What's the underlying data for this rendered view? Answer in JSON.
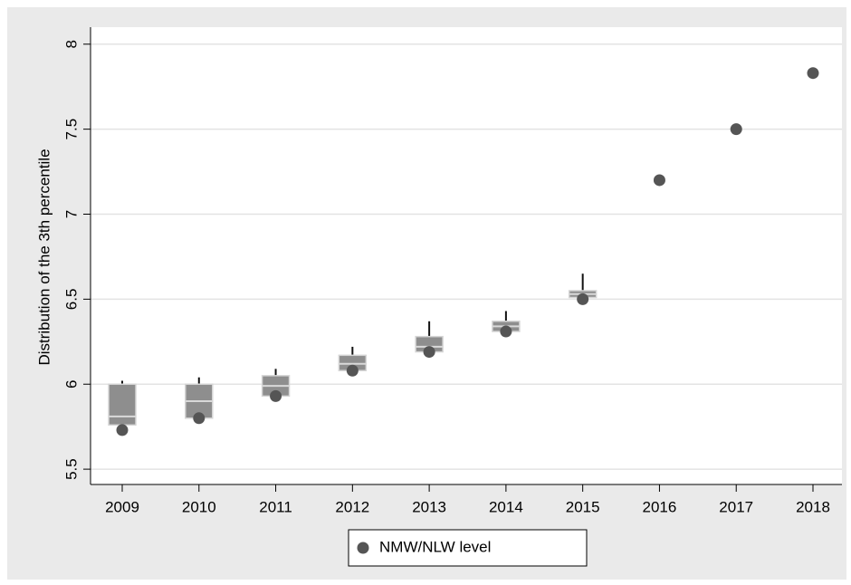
{
  "chart_data": {
    "type": "box",
    "ylabel": "Distribution of the 3th percentile",
    "categories": [
      "2009",
      "2010",
      "2011",
      "2012",
      "2013",
      "2014",
      "2015",
      "2016",
      "2017",
      "2018"
    ],
    "ylim": [
      5.41,
      8.1
    ],
    "yticks": [
      5.5,
      6,
      6.5,
      7,
      7.5,
      8
    ],
    "grid": true,
    "boxes": {
      "color": "#8e8e8e",
      "whisker_low": [
        5.76,
        5.8,
        5.93,
        6.08,
        6.19,
        6.31,
        6.51,
        null,
        null,
        null
      ],
      "q1": [
        5.76,
        5.8,
        5.93,
        6.08,
        6.19,
        6.31,
        6.51,
        null,
        null,
        null
      ],
      "median": [
        5.81,
        5.9,
        5.99,
        6.12,
        6.22,
        6.34,
        6.53,
        null,
        null,
        null
      ],
      "q3": [
        6.0,
        6.0,
        6.05,
        6.17,
        6.28,
        6.37,
        6.55,
        null,
        null,
        null
      ],
      "whisker_high": [
        6.02,
        6.04,
        6.09,
        6.22,
        6.37,
        6.43,
        6.65,
        null,
        null,
        null
      ]
    },
    "series": [
      {
        "name": "NMW/NLW level",
        "color": "#555555",
        "values": [
          5.73,
          5.8,
          5.93,
          6.08,
          6.19,
          6.31,
          6.5,
          7.2,
          7.5,
          7.83
        ]
      }
    ],
    "legend": "bottom"
  }
}
